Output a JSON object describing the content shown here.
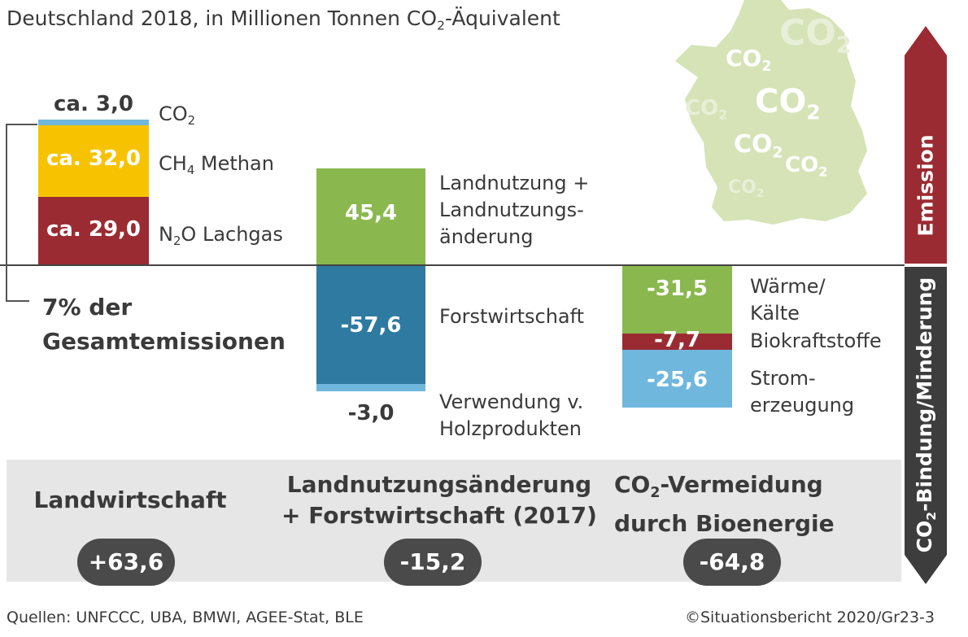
{
  "title_pre": "Deutschland 2018, in Millionen Tonnen CO",
  "title_sub": "2",
  "title_post": "-Äquivalent",
  "map": {
    "labels": [
      {
        "main": "CO",
        "sub": "2"
      },
      {
        "main": "CO",
        "sub": "2"
      },
      {
        "main": "CO",
        "sub": "2"
      },
      {
        "main": "CO",
        "sub": "2"
      },
      {
        "main": "CO",
        "sub": "2"
      },
      {
        "main": "CO",
        "sub": "2"
      },
      {
        "main": "CO",
        "sub": "2"
      }
    ]
  },
  "agriculture": {
    "bracket_label_line1": "7% der",
    "bracket_label_line2": "Gesamtemissionen",
    "segments": [
      {
        "value_label": "ca. 3,0",
        "gas": "CO",
        "gas_sub": "2",
        "name": ""
      },
      {
        "value_label": "ca. 32,0",
        "gas": "CH",
        "gas_sub": "4",
        "name": " Methan"
      },
      {
        "value_label": "ca. 29,0",
        "gas": "N",
        "gas_sub": "2",
        "name": "O Lachgas"
      }
    ]
  },
  "landuse": {
    "segments": [
      {
        "value_label": "45,4",
        "name_line1": "Landnutzung +",
        "name_line2": "Landnutzungs-",
        "name_line3": "änderung"
      },
      {
        "value_label": "-57,6",
        "name_line1": "Forstwirtschaft"
      },
      {
        "value_label": "-3,0",
        "name_line1": "Verwendung v.",
        "name_line2": "Holzprodukten"
      }
    ]
  },
  "bioenergy": {
    "segments": [
      {
        "value_label": "-31,5",
        "name_line1": "Wärme/",
        "name_line2": "Kälte"
      },
      {
        "value_label": "-7,7",
        "name_line1": "Biokraftstoffe"
      },
      {
        "value_label": "-25,6",
        "name_line1": "Strom-",
        "name_line2": "erzeugung"
      }
    ]
  },
  "groups": {
    "agriculture_title": "Landwirtschaft",
    "agriculture_total": "+63,6",
    "landuse_title_line1": "Landnutzungsänderung",
    "landuse_title_line2": "+ Forstwirtschaft (2017)",
    "landuse_total": "-15,2",
    "bio_title_line1_pre": "CO",
    "bio_title_line1_sub": "2",
    "bio_title_line1_post": "-Vermeidung",
    "bio_title_line2": "durch Bioenergie",
    "bio_total": "-64,8"
  },
  "arrow": {
    "up_label": "Emission",
    "down_label_pre": "CO",
    "down_label_sub": "2",
    "down_label_post": "-Bindung/Minderung",
    "up_color": "#9b2b32",
    "down_color": "#3d3d3d"
  },
  "footer": {
    "sources": "Quellen: UNFCCC, UBA, BMWI, AGEE-Stat, BLE",
    "copyright": "©Situationsbericht 2020/Gr23-3"
  },
  "colors": {
    "co2": "#6fb7dd",
    "ch4": "#f7c300",
    "n2o": "#9b2b32",
    "landuse": "#8ab84e",
    "forest": "#2e7aa0",
    "wood": "#6fb7dd",
    "heat": "#8ab84e",
    "biofuel": "#9b2b32",
    "power": "#6fb7dd",
    "map": "#d5e3b6"
  },
  "chart_data": {
    "type": "bar",
    "unit": "Millionen Tonnen CO2-Äquivalent",
    "categories": [
      "Landwirtschaft",
      "Landnutzungsänderung + Forstwirtschaft (2017)",
      "CO2-Vermeidung durch Bioenergie"
    ],
    "series": [
      {
        "name": "CO2",
        "values": [
          3.0,
          null,
          null
        ]
      },
      {
        "name": "CH4 Methan",
        "values": [
          32.0,
          null,
          null
        ]
      },
      {
        "name": "N2O Lachgas",
        "values": [
          29.0,
          null,
          null
        ]
      },
      {
        "name": "Landnutzung + Landnutzungsänderung",
        "values": [
          null,
          45.4,
          null
        ]
      },
      {
        "name": "Forstwirtschaft",
        "values": [
          null,
          -57.6,
          null
        ]
      },
      {
        "name": "Verwendung v. Holzprodukten",
        "values": [
          null,
          -3.0,
          null
        ]
      },
      {
        "name": "Wärme/Kälte",
        "values": [
          null,
          null,
          -31.5
        ]
      },
      {
        "name": "Biokraftstoffe",
        "values": [
          null,
          null,
          -7.7
        ]
      },
      {
        "name": "Stromerzeugung",
        "values": [
          null,
          null,
          -25.6
        ]
      }
    ],
    "totals": [
      63.6,
      -15.2,
      -64.8
    ],
    "stacked": true
  }
}
